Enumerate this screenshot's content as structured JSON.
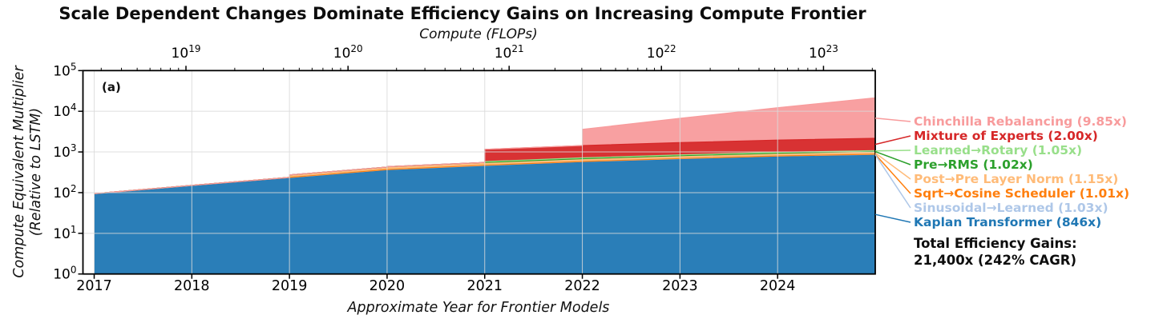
{
  "title": "Scale Dependent Changes Dominate Efficiency Gains on Increasing Compute Frontier",
  "panel_label": "(a)",
  "top_axis": {
    "label": "Compute (FLOPs)",
    "ticks": [
      {
        "exponent": 19,
        "year": 2017.94
      },
      {
        "exponent": 20,
        "year": 2019.6
      },
      {
        "exponent": 21,
        "year": 2021.25
      },
      {
        "exponent": 22,
        "year": 2022.81
      },
      {
        "exponent": 23,
        "year": 2024.47
      }
    ]
  },
  "x_axis": {
    "label": "Approximate Year for Frontier Models",
    "range": [
      2016.885,
      2025.0
    ],
    "ticks": [
      2017,
      2018,
      2019,
      2020,
      2021,
      2022,
      2023,
      2024
    ]
  },
  "y_axis": {
    "label_line1": "Compute Equivalent Multiplier",
    "label_line2": "(Relative to LSTM)",
    "tick_exponents": [
      0,
      1,
      2,
      3,
      4,
      5
    ],
    "range": [
      1,
      100000
    ]
  },
  "totals": {
    "line1": "Total Efficiency Gains:",
    "line2": "21,400x (242% CAGR)"
  },
  "legend": {
    "items": [
      {
        "label": "Chinchilla Rebalancing (9.85x)",
        "color": "#f89b9c"
      },
      {
        "label": "Mixture of Experts (2.00x)",
        "color": "#d62728"
      },
      {
        "label": "Learned→Rotary (1.05x)",
        "color": "#98df8a"
      },
      {
        "label": "Pre→RMS (1.02x)",
        "color": "#2ca02c"
      },
      {
        "label": "Post→Pre Layer Norm (1.15x)",
        "color": "#ffbb78"
      },
      {
        "label": "Sqrt→Cosine Scheduler (1.01x)",
        "color": "#ff7f0e"
      },
      {
        "label": "Sinusoidal→Learned (1.03x)",
        "color": "#aec7e8"
      },
      {
        "label": "Kaplan Transformer (846x)",
        "color": "#1f77b4"
      }
    ]
  },
  "chart_data": {
    "type": "area",
    "y_scale": "log",
    "xlabel": "Approximate Year for Frontier Models",
    "ylabel": "Compute Equivalent Multiplier (Relative to LSTM)",
    "ylim": [
      1,
      100000
    ],
    "xlim": [
      2016.885,
      2025.0
    ],
    "grid": true,
    "stacking": "multiplicative efficiency stack; each band array is the cumulative stack top [year, multiplier]",
    "bands": [
      {
        "name": "Kaplan Transformer",
        "multiplier": "846x",
        "color": "#1f77b4",
        "top": [
          [
            2017,
            91
          ],
          [
            2018,
            145
          ],
          [
            2019,
            228
          ],
          [
            2020,
            355
          ],
          [
            2021,
            452
          ],
          [
            2022,
            560
          ],
          [
            2023,
            662
          ],
          [
            2024,
            766
          ],
          [
            2025,
            846
          ]
        ]
      },
      {
        "name": "Sinusoidal→Learned",
        "multiplier": "1.03x",
        "color": "#aec7e8",
        "top": [
          [
            2017,
            93.7
          ],
          [
            2018,
            149.4
          ],
          [
            2019,
            234.8
          ],
          [
            2020,
            365.7
          ],
          [
            2021,
            465.6
          ],
          [
            2022,
            576.8
          ],
          [
            2023,
            681.9
          ],
          [
            2024,
            789.0
          ],
          [
            2025,
            871.4
          ]
        ]
      },
      {
        "name": "Sqrt→Cosine Scheduler",
        "multiplier": "1.01x",
        "color": "#ff7f0e",
        "top": [
          [
            2017,
            94.6
          ],
          [
            2018,
            150.9
          ],
          [
            2019,
            237.2
          ],
          [
            2020,
            369.3
          ],
          [
            2021,
            470.2
          ],
          [
            2022,
            582.6
          ],
          [
            2023,
            688.7
          ],
          [
            2024,
            796.9
          ],
          [
            2025,
            880.1
          ]
        ]
      },
      {
        "name": "Post→Pre Layer Norm",
        "multiplier": "1.15x",
        "color": "#ffbb78",
        "top": [
          [
            2017,
            94.6
          ],
          [
            2018,
            150.9
          ],
          [
            2019,
            237.2
          ],
          [
            2019,
            272.8
          ],
          [
            2020,
            424.7
          ],
          [
            2021,
            540.8
          ],
          [
            2022,
            670.0
          ],
          [
            2023,
            792.0
          ],
          [
            2024,
            916.4
          ],
          [
            2025,
            1012.1
          ]
        ]
      },
      {
        "name": "Pre→RMS",
        "multiplier": "1.02x",
        "color": "#2ca02c",
        "top": [
          [
            2017,
            94.6
          ],
          [
            2018,
            150.9
          ],
          [
            2019,
            237.2
          ],
          [
            2019,
            272.8
          ],
          [
            2020,
            424.7
          ],
          [
            2020,
            433.2
          ],
          [
            2021,
            551.6
          ],
          [
            2022,
            683.4
          ],
          [
            2023,
            807.8
          ],
          [
            2024,
            934.7
          ],
          [
            2025,
            1032.3
          ]
        ]
      },
      {
        "name": "Learned→Rotary",
        "multiplier": "1.05x",
        "color": "#98df8a",
        "top": [
          [
            2017,
            94.6
          ],
          [
            2018,
            150.9
          ],
          [
            2019,
            237.2
          ],
          [
            2019,
            272.8
          ],
          [
            2020,
            424.7
          ],
          [
            2020,
            433.2
          ],
          [
            2021,
            551.6
          ],
          [
            2021,
            579.2
          ],
          [
            2022,
            717.5
          ],
          [
            2023,
            848.2
          ],
          [
            2024,
            981.5
          ],
          [
            2025,
            1083.9
          ]
        ]
      },
      {
        "name": "Mixture of Experts",
        "multiplier": "2.00x",
        "color": "#d62728",
        "top": [
          [
            2017,
            94.6
          ],
          [
            2018,
            150.9
          ],
          [
            2019,
            237.2
          ],
          [
            2019,
            272.8
          ],
          [
            2020,
            424.7
          ],
          [
            2020,
            433.2
          ],
          [
            2021,
            551.6
          ],
          [
            2021,
            1158.3
          ],
          [
            2022,
            1435.1
          ],
          [
            2023,
            1696.4
          ],
          [
            2024,
            1963.0
          ],
          [
            2025,
            2167.8
          ]
        ]
      },
      {
        "name": "Chinchilla Rebalancing",
        "multiplier": "9.85x",
        "color": "#f89b9c",
        "top": [
          [
            2017,
            94.6
          ],
          [
            2018,
            150.9
          ],
          [
            2019,
            237.2
          ],
          [
            2019,
            272.8
          ],
          [
            2020,
            424.7
          ],
          [
            2020,
            433.2
          ],
          [
            2021,
            551.6
          ],
          [
            2021,
            1158.3
          ],
          [
            2022,
            1435.1
          ],
          [
            2022,
            3587.8
          ],
          [
            2023,
            6700.8
          ],
          [
            2024,
            12229.5
          ],
          [
            2025,
            21352.8
          ]
        ]
      }
    ],
    "total": "21,400x (242% CAGR)"
  }
}
